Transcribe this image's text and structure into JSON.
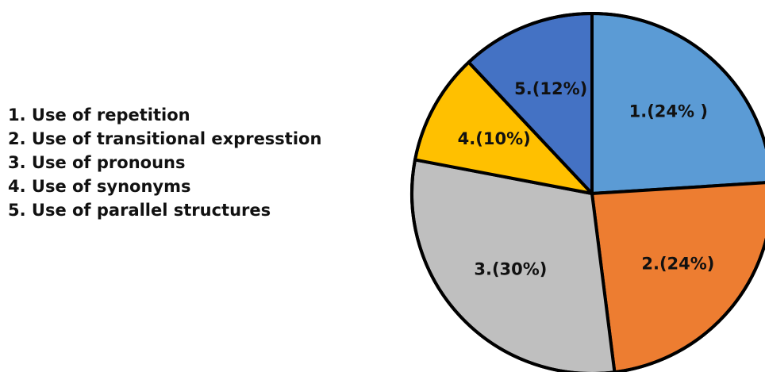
{
  "chart_data": {
    "type": "pie",
    "legend": [
      "1. Use of repetition",
      "2. Use of transitional expresstion",
      "3. Use of pronouns",
      "4. Use of synonyms",
      "5. Use of parallel structures"
    ],
    "slices": [
      {
        "label": "1.(24% )",
        "value": 24,
        "color": "#5b9bd5"
      },
      {
        "label": "2.(24%)",
        "value": 24,
        "color": "#ed7d31"
      },
      {
        "label": "3.(30%)",
        "value": 30,
        "color": "#bfbfbf"
      },
      {
        "label": "4.(10%)",
        "value": 10,
        "color": "#ffc000"
      },
      {
        "label": "5.(12%)",
        "value": 12,
        "color": "#4472c4"
      }
    ],
    "legend_position": "left"
  }
}
